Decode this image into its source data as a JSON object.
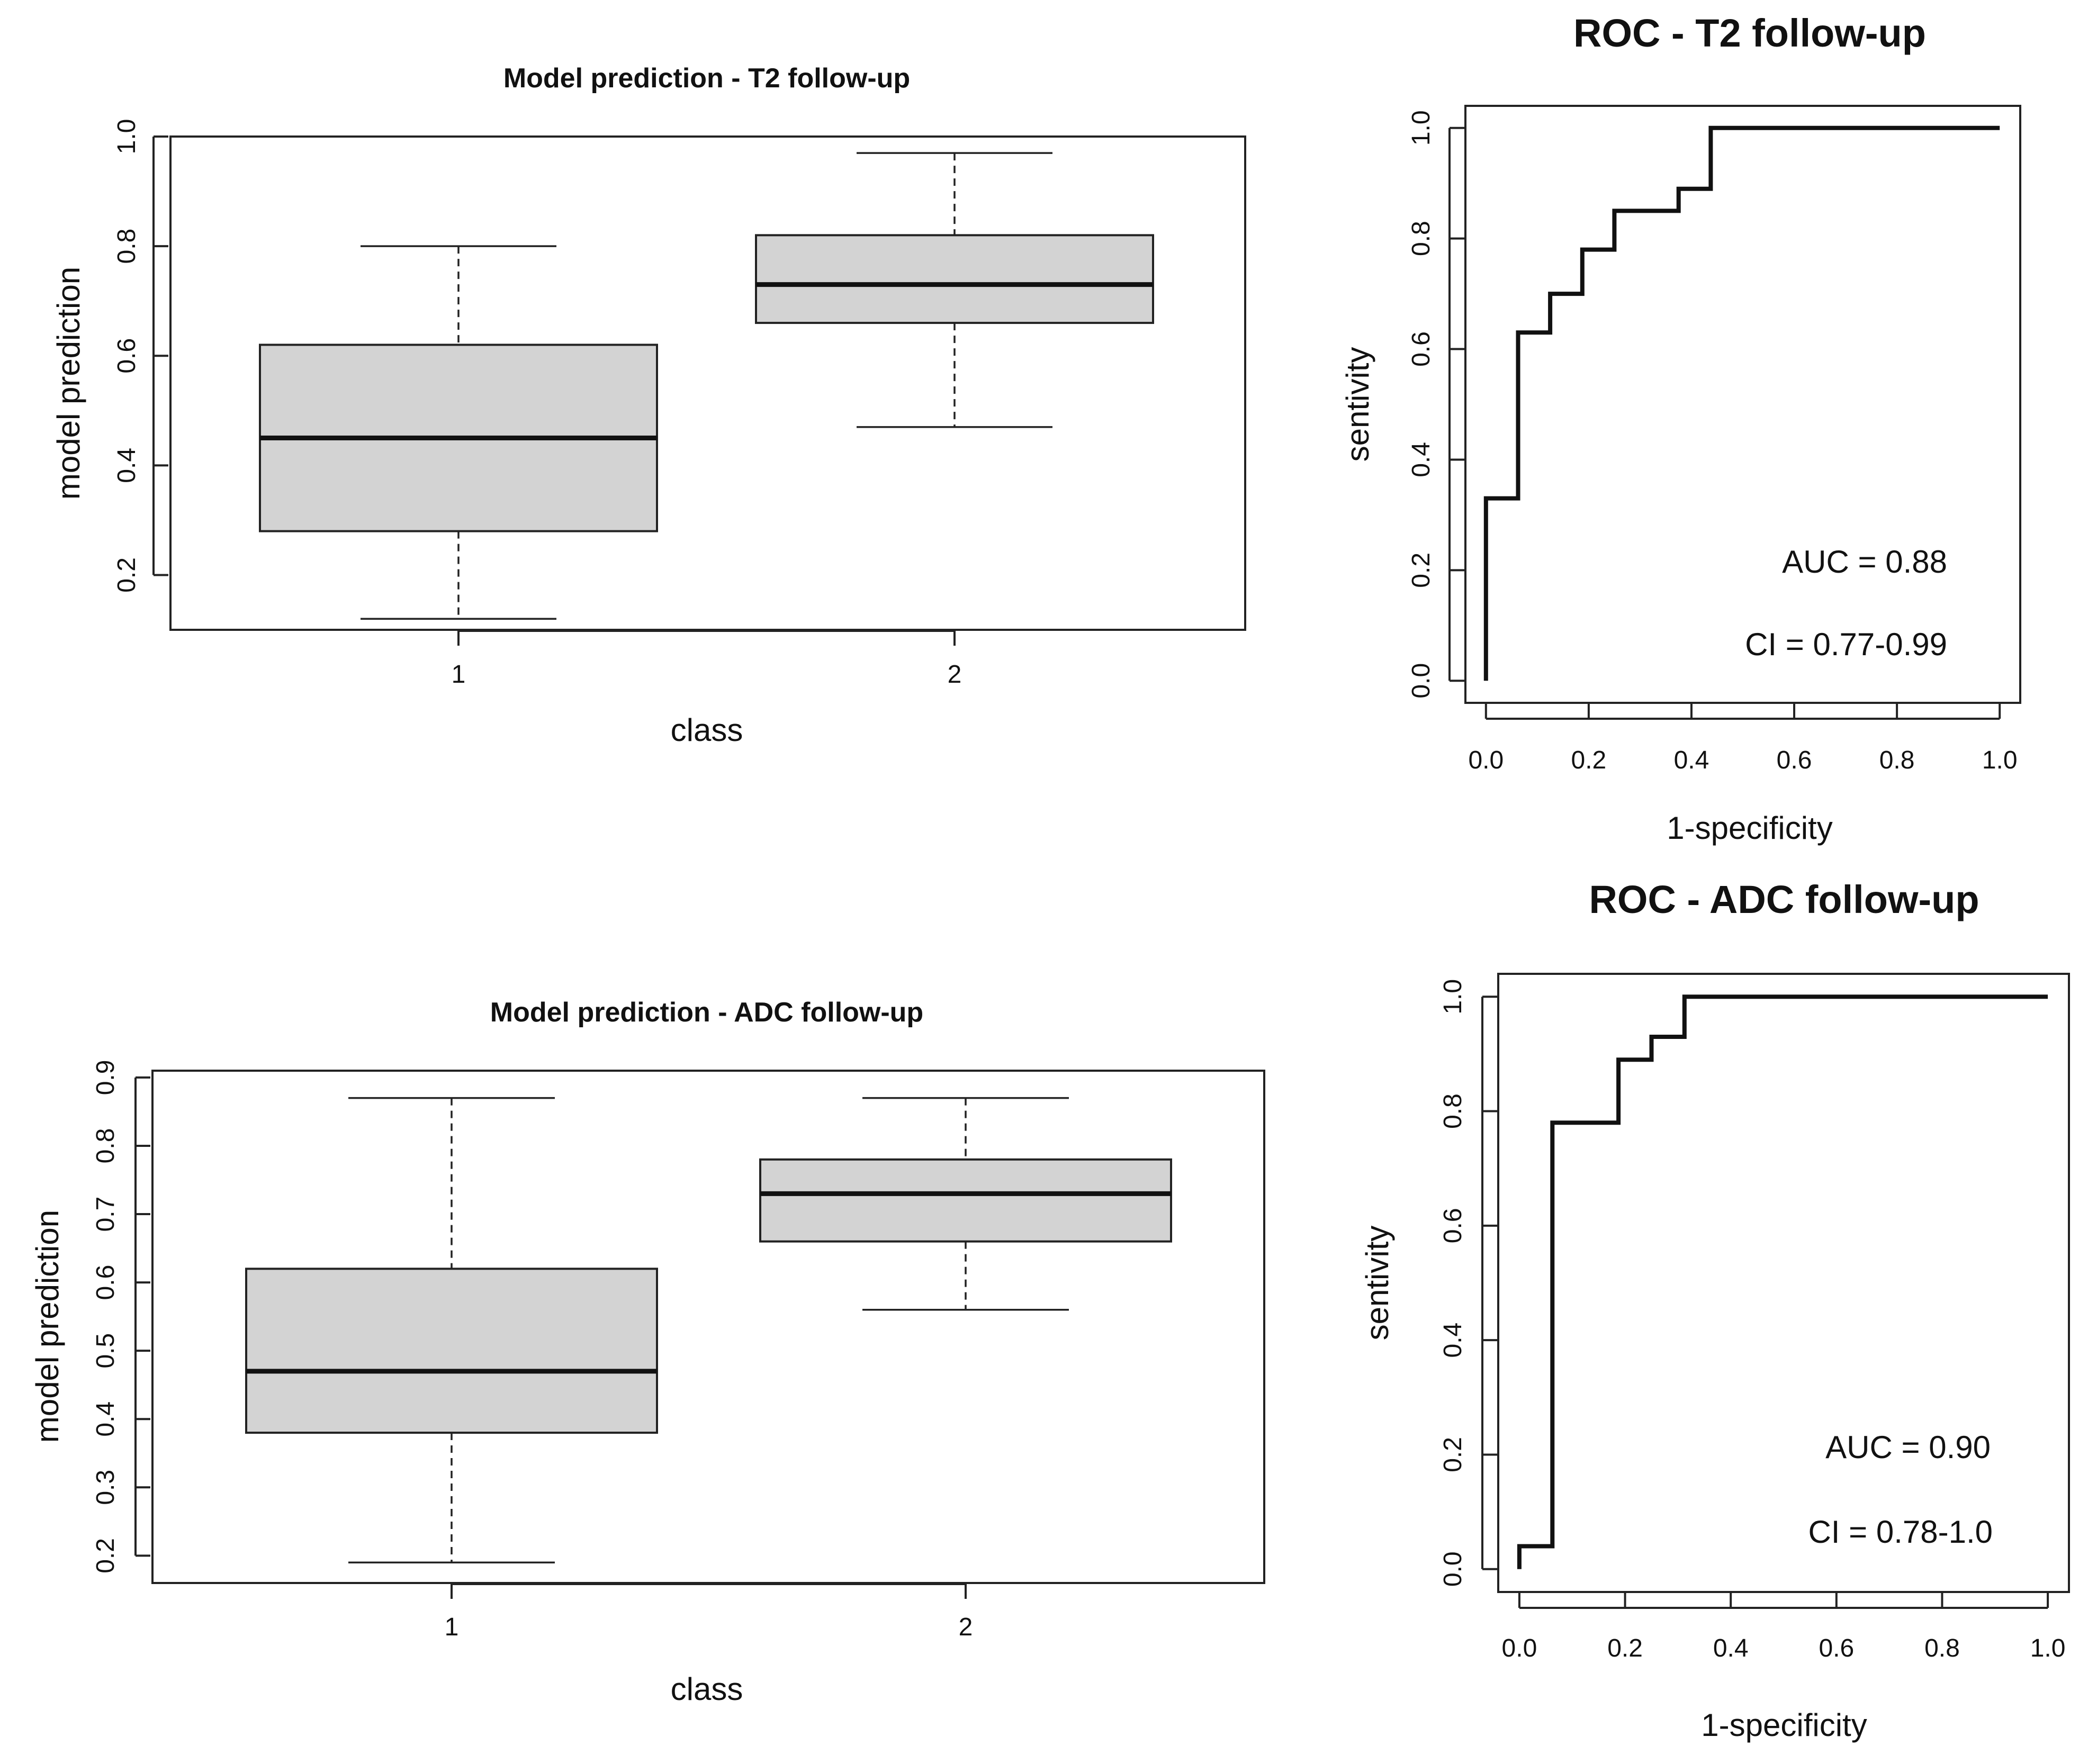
{
  "chart_data": [
    {
      "type": "boxplot",
      "title": "Model prediction - T2 follow-up",
      "xlabel": "class",
      "ylabel": "model prediction",
      "ylim": [
        0.1,
        1.0
      ],
      "yticks": [
        0.2,
        0.4,
        0.6,
        0.8,
        1.0
      ],
      "ytick_labels": [
        "0.2",
        "0.4",
        "0.6",
        "0.8",
        "1.0"
      ],
      "categories": [
        "1",
        "2"
      ],
      "boxes": [
        {
          "min": 0.12,
          "q1": 0.28,
          "median": 0.45,
          "q3": 0.62,
          "max": 0.8
        },
        {
          "min": 0.47,
          "q1": 0.66,
          "median": 0.73,
          "q3": 0.82,
          "max": 0.97
        }
      ]
    },
    {
      "type": "boxplot",
      "title": "Model prediction - ADC follow-up",
      "xlabel": "class",
      "ylabel": "model prediction",
      "ylim": [
        0.16,
        0.91
      ],
      "yticks": [
        0.2,
        0.3,
        0.4,
        0.5,
        0.6,
        0.7,
        0.8,
        0.9
      ],
      "ytick_labels": [
        "0.2",
        "0.3",
        "0.4",
        "0.5",
        "0.6",
        "0.7",
        "0.8",
        "0.9"
      ],
      "categories": [
        "1",
        "2"
      ],
      "boxes": [
        {
          "min": 0.19,
          "q1": 0.38,
          "median": 0.47,
          "q3": 0.62,
          "max": 0.87
        },
        {
          "min": 0.56,
          "q1": 0.66,
          "median": 0.73,
          "q3": 0.78,
          "max": 0.87
        }
      ]
    },
    {
      "type": "line",
      "title": "ROC - T2 follow-up",
      "xlabel": "1-specificity",
      "ylabel": "sentivity",
      "xlim": [
        -0.04,
        1.04
      ],
      "ylim": [
        -0.04,
        1.04
      ],
      "xticks": [
        0.0,
        0.2,
        0.4,
        0.6,
        0.8,
        1.0
      ],
      "xtick_labels": [
        "0.0",
        "0.2",
        "0.4",
        "0.6",
        "0.8",
        "1.0"
      ],
      "yticks": [
        0.0,
        0.2,
        0.4,
        0.6,
        0.8,
        1.0
      ],
      "ytick_labels": [
        "0.0",
        "0.2",
        "0.4",
        "0.6",
        "0.8",
        "1.0"
      ],
      "series": [
        {
          "name": "ROC",
          "x": [
            0.0,
            0.0,
            0.0625,
            0.0625,
            0.125,
            0.125,
            0.1875,
            0.1875,
            0.25,
            0.25,
            0.375,
            0.375,
            0.4375,
            0.4375,
            1.0
          ],
          "y": [
            0.0,
            0.33,
            0.33,
            0.63,
            0.63,
            0.7,
            0.7,
            0.78,
            0.78,
            0.85,
            0.85,
            0.89,
            0.89,
            1.0,
            1.0
          ]
        }
      ],
      "annotations": [
        "AUC = 0.88",
        "CI = 0.77-0.99"
      ]
    },
    {
      "type": "line",
      "title": "ROC - ADC follow-up",
      "xlabel": "1-specificity",
      "ylabel": "sentivity",
      "xlim": [
        -0.04,
        1.04
      ],
      "ylim": [
        -0.04,
        1.04
      ],
      "xticks": [
        0.0,
        0.2,
        0.4,
        0.6,
        0.8,
        1.0
      ],
      "xtick_labels": [
        "0.0",
        "0.2",
        "0.4",
        "0.6",
        "0.8",
        "1.0"
      ],
      "yticks": [
        0.0,
        0.2,
        0.4,
        0.6,
        0.8,
        1.0
      ],
      "ytick_labels": [
        "0.0",
        "0.2",
        "0.4",
        "0.6",
        "0.8",
        "1.0"
      ],
      "series": [
        {
          "name": "ROC",
          "x": [
            0.0,
            0.0,
            0.0625,
            0.0625,
            0.1875,
            0.1875,
            0.25,
            0.25,
            0.3125,
            0.3125,
            1.0
          ],
          "y": [
            0.0,
            0.04,
            0.04,
            0.78,
            0.78,
            0.89,
            0.89,
            0.93,
            0.93,
            1.0,
            1.0
          ]
        }
      ],
      "annotations": [
        "AUC = 0.90",
        "CI = 0.78-1.0"
      ]
    }
  ]
}
